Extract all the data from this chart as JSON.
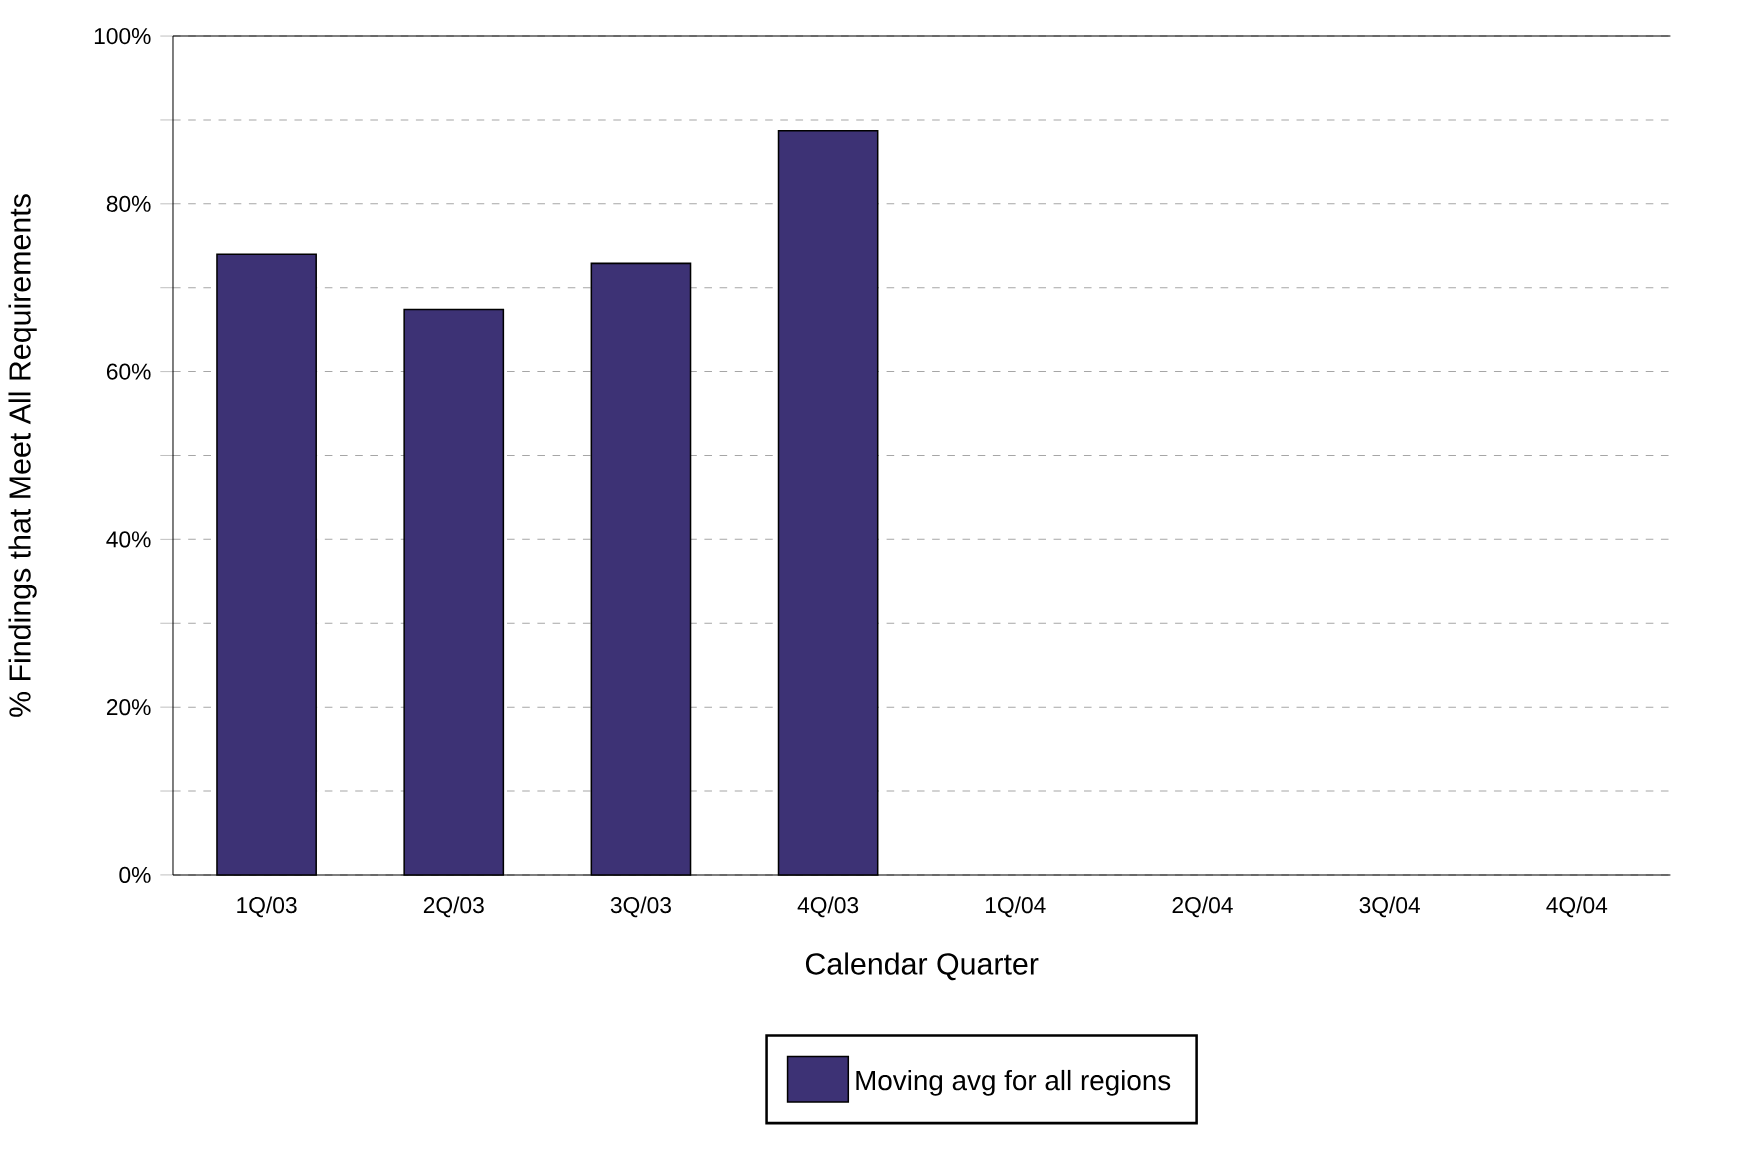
{
  "chart_data": {
    "type": "bar",
    "xlabel": "Calendar Quarter",
    "ylabel": "% Findings that Meet All Requirements",
    "categories": [
      "1Q/03",
      "2Q/03",
      "3Q/03",
      "4Q/03",
      "1Q/04",
      "2Q/04",
      "3Q/04",
      "4Q/04"
    ],
    "series": [
      {
        "name": "Moving avg for all regions",
        "color": "#3d3275",
        "values": [
          74,
          67.4,
          72.9,
          88.7,
          null,
          null,
          null,
          null
        ]
      }
    ],
    "ylim": [
      0,
      100
    ],
    "yticks": [
      {
        "value": 0,
        "label": "0%"
      },
      {
        "value": 10,
        "label": null
      },
      {
        "value": 20,
        "label": "20%"
      },
      {
        "value": 30,
        "label": null
      },
      {
        "value": 40,
        "label": "40%"
      },
      {
        "value": 50,
        "label": null
      },
      {
        "value": 60,
        "label": "60%"
      },
      {
        "value": 70,
        "label": null
      },
      {
        "value": 80,
        "label": "80%"
      },
      {
        "value": 90,
        "label": null
      },
      {
        "value": 100,
        "label": "100%"
      }
    ],
    "grid": "y",
    "legend": "bottom"
  }
}
